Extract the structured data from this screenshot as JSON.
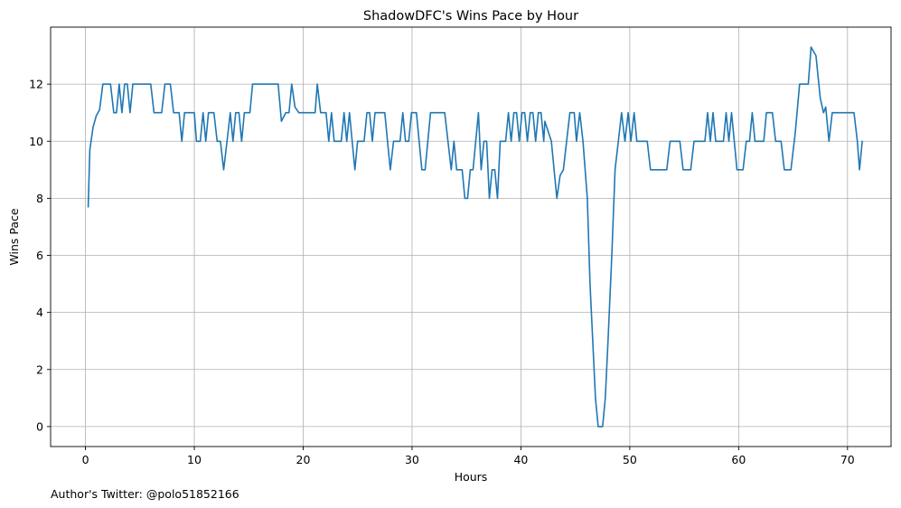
{
  "chart_data": {
    "type": "line",
    "title": "ShadowDFC's Wins Pace by Hour",
    "xlabel": "Hours",
    "ylabel": "Wins Pace",
    "xlim": [
      -3.2,
      74.0
    ],
    "ylim": [
      -0.7,
      14.0
    ],
    "xticks": [
      0,
      10,
      20,
      30,
      40,
      50,
      60,
      70
    ],
    "yticks": [
      0,
      2,
      4,
      6,
      8,
      10,
      12
    ],
    "grid": true,
    "line_color": "#1f77b4",
    "footnote": "Author's Twitter: @polo51852166",
    "series": [
      {
        "name": "Wins Pace",
        "points": [
          [
            0.25,
            7.7
          ],
          [
            0.4,
            9.7
          ],
          [
            0.7,
            10.5
          ],
          [
            1.0,
            10.9
          ],
          [
            1.3,
            11.1
          ],
          [
            1.6,
            12
          ],
          [
            2.0,
            12
          ],
          [
            2.3,
            12
          ],
          [
            2.6,
            11
          ],
          [
            2.85,
            11
          ],
          [
            3.1,
            12
          ],
          [
            3.35,
            11
          ],
          [
            3.6,
            12
          ],
          [
            3.85,
            12
          ],
          [
            4.1,
            11
          ],
          [
            4.35,
            12
          ],
          [
            5.0,
            12
          ],
          [
            5.5,
            12
          ],
          [
            6.0,
            12
          ],
          [
            6.3,
            11
          ],
          [
            7.0,
            11
          ],
          [
            7.3,
            12
          ],
          [
            7.8,
            12
          ],
          [
            8.1,
            11
          ],
          [
            8.6,
            11
          ],
          [
            8.85,
            10
          ],
          [
            9.1,
            11
          ],
          [
            9.6,
            11
          ],
          [
            10.0,
            11
          ],
          [
            10.2,
            10
          ],
          [
            10.55,
            10
          ],
          [
            10.8,
            11
          ],
          [
            11.05,
            10
          ],
          [
            11.3,
            11
          ],
          [
            11.8,
            11
          ],
          [
            12.1,
            10
          ],
          [
            12.4,
            10
          ],
          [
            12.7,
            9
          ],
          [
            13.0,
            10
          ],
          [
            13.3,
            11
          ],
          [
            13.55,
            10
          ],
          [
            13.8,
            11
          ],
          [
            14.1,
            11
          ],
          [
            14.35,
            10
          ],
          [
            14.6,
            11
          ],
          [
            15.1,
            11
          ],
          [
            15.35,
            12
          ],
          [
            16.0,
            12
          ],
          [
            17.0,
            12
          ],
          [
            17.7,
            12
          ],
          [
            18.0,
            10.7
          ],
          [
            18.4,
            11
          ],
          [
            18.7,
            11
          ],
          [
            18.95,
            12
          ],
          [
            19.25,
            11.2
          ],
          [
            19.6,
            11
          ],
          [
            20.5,
            11
          ],
          [
            21.1,
            11
          ],
          [
            21.3,
            12
          ],
          [
            21.6,
            11
          ],
          [
            22.1,
            11
          ],
          [
            22.35,
            10
          ],
          [
            22.6,
            11
          ],
          [
            22.85,
            10
          ],
          [
            23.5,
            10
          ],
          [
            23.75,
            11
          ],
          [
            24.0,
            10
          ],
          [
            24.25,
            11
          ],
          [
            24.5,
            10
          ],
          [
            24.75,
            9
          ],
          [
            25.0,
            10
          ],
          [
            25.6,
            10
          ],
          [
            25.85,
            11
          ],
          [
            26.1,
            11
          ],
          [
            26.35,
            10
          ],
          [
            26.6,
            11
          ],
          [
            27.5,
            11
          ],
          [
            27.75,
            10
          ],
          [
            28.0,
            9
          ],
          [
            28.3,
            10
          ],
          [
            28.9,
            10
          ],
          [
            29.15,
            11
          ],
          [
            29.4,
            10
          ],
          [
            29.7,
            10
          ],
          [
            29.95,
            11
          ],
          [
            30.4,
            11
          ],
          [
            30.65,
            10
          ],
          [
            30.9,
            9
          ],
          [
            31.2,
            9
          ],
          [
            31.45,
            10
          ],
          [
            31.7,
            11
          ],
          [
            33.0,
            11
          ],
          [
            33.3,
            10
          ],
          [
            33.6,
            9
          ],
          [
            33.85,
            10
          ],
          [
            34.1,
            9
          ],
          [
            34.6,
            9
          ],
          [
            34.85,
            8
          ],
          [
            35.1,
            8
          ],
          [
            35.35,
            9
          ],
          [
            35.6,
            9
          ],
          [
            35.85,
            10
          ],
          [
            36.1,
            11
          ],
          [
            36.35,
            9
          ],
          [
            36.6,
            10
          ],
          [
            36.85,
            10
          ],
          [
            37.1,
            8
          ],
          [
            37.35,
            9
          ],
          [
            37.6,
            9
          ],
          [
            37.85,
            8
          ],
          [
            38.1,
            10
          ],
          [
            38.6,
            10
          ],
          [
            38.85,
            11
          ],
          [
            39.1,
            10
          ],
          [
            39.35,
            11
          ],
          [
            39.6,
            11
          ],
          [
            39.85,
            10
          ],
          [
            40.1,
            11
          ],
          [
            40.35,
            11
          ],
          [
            40.6,
            10
          ],
          [
            40.85,
            11
          ],
          [
            41.1,
            11
          ],
          [
            41.35,
            10
          ],
          [
            41.6,
            11
          ],
          [
            41.85,
            11
          ],
          [
            42.1,
            10
          ],
          [
            42.2,
            10.7
          ],
          [
            42.8,
            10
          ],
          [
            43.3,
            8
          ],
          [
            43.6,
            8.8
          ],
          [
            43.9,
            9
          ],
          [
            44.2,
            10
          ],
          [
            44.5,
            11
          ],
          [
            44.9,
            11
          ],
          [
            45.1,
            10
          ],
          [
            45.4,
            11
          ],
          [
            45.7,
            10
          ],
          [
            46.1,
            8
          ],
          [
            46.35,
            5
          ],
          [
            46.6,
            3
          ],
          [
            46.85,
            1
          ],
          [
            47.1,
            0
          ],
          [
            47.5,
            0
          ],
          [
            47.75,
            1
          ],
          [
            48.0,
            3
          ],
          [
            48.35,
            6
          ],
          [
            48.65,
            9
          ],
          [
            48.95,
            10
          ],
          [
            49.25,
            11
          ],
          [
            49.55,
            10
          ],
          [
            49.85,
            11
          ],
          [
            50.1,
            10
          ],
          [
            50.4,
            11
          ],
          [
            50.65,
            10
          ],
          [
            51.2,
            10
          ],
          [
            51.6,
            10
          ],
          [
            51.9,
            9
          ],
          [
            52.5,
            9
          ],
          [
            53.4,
            9
          ],
          [
            53.7,
            10
          ],
          [
            54.6,
            10
          ],
          [
            54.9,
            9
          ],
          [
            55.6,
            9
          ],
          [
            55.9,
            10
          ],
          [
            56.9,
            10
          ],
          [
            57.15,
            11
          ],
          [
            57.4,
            10
          ],
          [
            57.65,
            11
          ],
          [
            57.9,
            10
          ],
          [
            58.6,
            10
          ],
          [
            58.85,
            11
          ],
          [
            59.1,
            10
          ],
          [
            59.35,
            11
          ],
          [
            59.6,
            10
          ],
          [
            59.85,
            9
          ],
          [
            60.4,
            9
          ],
          [
            60.7,
            10
          ],
          [
            61.0,
            10
          ],
          [
            61.25,
            11
          ],
          [
            61.5,
            10
          ],
          [
            62.3,
            10
          ],
          [
            62.55,
            11
          ],
          [
            63.1,
            11
          ],
          [
            63.4,
            10
          ],
          [
            63.9,
            10
          ],
          [
            64.2,
            9
          ],
          [
            64.8,
            9
          ],
          [
            65.2,
            10.3
          ],
          [
            65.6,
            12
          ],
          [
            66.4,
            12
          ],
          [
            66.65,
            13.3
          ],
          [
            67.1,
            13
          ],
          [
            67.5,
            11.5
          ],
          [
            67.8,
            11
          ],
          [
            68.0,
            11.2
          ],
          [
            68.3,
            10
          ],
          [
            68.6,
            11
          ],
          [
            69.5,
            11
          ],
          [
            70.6,
            11
          ],
          [
            70.9,
            10
          ],
          [
            71.1,
            9
          ],
          [
            71.35,
            10
          ]
        ]
      }
    ]
  }
}
